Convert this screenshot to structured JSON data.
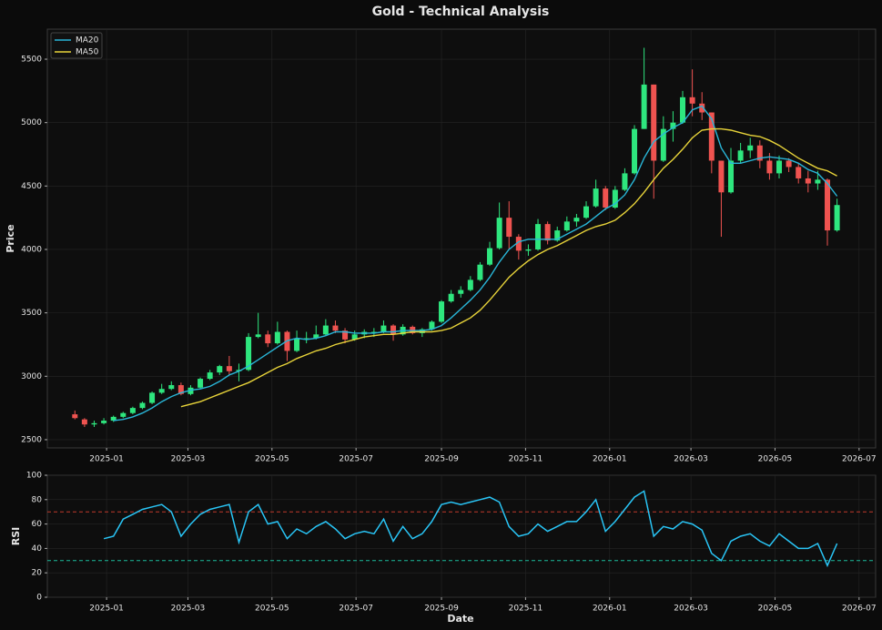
{
  "chart_data": [
    {
      "type": "candlestick",
      "title": "Gold - Technical Analysis",
      "y_label": "Price",
      "x": [
        "2024-12-09",
        "2024-12-16",
        "2024-12-23",
        "2024-12-30",
        "2025-01-06",
        "2025-01-13",
        "2025-01-20",
        "2025-01-27",
        "2025-02-03",
        "2025-02-10",
        "2025-02-17",
        "2025-02-24",
        "2025-03-03",
        "2025-03-10",
        "2025-03-17",
        "2025-03-24",
        "2025-03-31",
        "2025-04-07",
        "2025-04-14",
        "2025-04-21",
        "2025-04-28",
        "2025-05-05",
        "2025-05-12",
        "2025-05-19",
        "2025-05-26",
        "2025-06-02",
        "2025-06-09",
        "2025-06-16",
        "2025-06-23",
        "2025-06-30",
        "2025-07-07",
        "2025-07-14",
        "2025-07-21",
        "2025-07-28",
        "2025-08-04",
        "2025-08-11",
        "2025-08-18",
        "2025-08-25",
        "2025-09-01",
        "2025-09-08",
        "2025-09-15",
        "2025-09-22",
        "2025-09-29",
        "2025-10-06",
        "2025-10-13",
        "2025-10-20",
        "2025-10-27",
        "2025-11-03",
        "2025-11-10",
        "2025-11-17",
        "2025-11-24",
        "2025-12-01",
        "2025-12-08",
        "2025-12-15",
        "2025-12-22",
        "2025-12-29",
        "2026-01-05",
        "2026-01-12",
        "2026-01-19",
        "2026-01-26",
        "2026-02-02",
        "2026-02-09",
        "2026-02-16",
        "2026-02-23",
        "2026-03-02",
        "2026-03-09",
        "2026-03-16",
        "2026-03-23",
        "2026-03-30",
        "2026-04-06",
        "2026-04-13",
        "2026-04-20",
        "2026-04-27",
        "2026-05-04",
        "2026-05-11",
        "2026-05-18",
        "2026-05-25",
        "2026-06-01",
        "2026-06-08",
        "2026-06-15"
      ],
      "open": [
        2700,
        2660,
        2620,
        2630,
        2650,
        2680,
        2710,
        2750,
        2790,
        2870,
        2900,
        2930,
        2860,
        2910,
        2980,
        3030,
        3080,
        3040,
        3050,
        3310,
        3330,
        3260,
        3350,
        3200,
        3300,
        3300,
        3330,
        3400,
        3360,
        3290,
        3330,
        3350,
        3350,
        3400,
        3330,
        3390,
        3340,
        3370,
        3430,
        3590,
        3650,
        3680,
        3760,
        3880,
        4010,
        4250,
        4100,
        3990,
        4000,
        4200,
        4070,
        4150,
        4220,
        4250,
        4340,
        4480,
        4330,
        4470,
        4600,
        4950,
        5300,
        4700,
        4950,
        5000,
        5200,
        5150,
        5080,
        4700,
        4450,
        4700,
        4780,
        4820,
        4700,
        4600,
        4700,
        4650,
        4560,
        4520,
        4550,
        4150
      ],
      "high": [
        2730,
        2670,
        2650,
        2670,
        2690,
        2720,
        2760,
        2800,
        2880,
        2940,
        2960,
        2950,
        2930,
        2990,
        3050,
        3090,
        3160,
        3100,
        3340,
        3500,
        3360,
        3430,
        3360,
        3360,
        3350,
        3400,
        3450,
        3440,
        3380,
        3360,
        3370,
        3380,
        3440,
        3410,
        3410,
        3400,
        3380,
        3440,
        3600,
        3680,
        3710,
        3790,
        3900,
        4060,
        4370,
        4380,
        4120,
        4040,
        4240,
        4220,
        4180,
        4260,
        4280,
        4380,
        4550,
        4500,
        4500,
        4640,
        4980,
        5590,
        5300,
        5050,
        5090,
        5250,
        5420,
        5240,
        5080,
        4700,
        4800,
        4840,
        4880,
        4860,
        4760,
        4740,
        4720,
        4680,
        4620,
        4620,
        4560,
        4400
      ],
      "low": [
        2660,
        2600,
        2600,
        2620,
        2640,
        2670,
        2700,
        2740,
        2780,
        2860,
        2890,
        2850,
        2850,
        2900,
        2970,
        3010,
        3010,
        2960,
        3040,
        3300,
        3230,
        3250,
        3120,
        3190,
        3260,
        3290,
        3320,
        3340,
        3260,
        3280,
        3300,
        3310,
        3340,
        3280,
        3320,
        3330,
        3310,
        3360,
        3420,
        3580,
        3620,
        3670,
        3750,
        3870,
        4000,
        4000,
        3920,
        3950,
        3990,
        4040,
        4060,
        4140,
        4180,
        4240,
        4330,
        4310,
        4320,
        4460,
        4590,
        4950,
        4400,
        4690,
        4850,
        4990,
        5050,
        5020,
        4600,
        4100,
        4440,
        4680,
        4720,
        4640,
        4550,
        4560,
        4610,
        4520,
        4450,
        4470,
        4030,
        4140
      ],
      "close": [
        2670,
        2620,
        2630,
        2650,
        2680,
        2710,
        2750,
        2790,
        2870,
        2900,
        2930,
        2860,
        2910,
        2980,
        3030,
        3080,
        3040,
        3050,
        3310,
        3330,
        3260,
        3350,
        3200,
        3300,
        3300,
        3330,
        3400,
        3360,
        3290,
        3330,
        3350,
        3350,
        3400,
        3330,
        3390,
        3340,
        3370,
        3430,
        3590,
        3650,
        3680,
        3760,
        3880,
        4010,
        4250,
        4100,
        3990,
        4000,
        4200,
        4070,
        4150,
        4220,
        4250,
        4340,
        4480,
        4330,
        4470,
        4600,
        4950,
        5300,
        4700,
        4950,
        5000,
        5200,
        5150,
        5080,
        4700,
        4450,
        4700,
        4780,
        4820,
        4700,
        4600,
        4700,
        4650,
        4560,
        4520,
        4550,
        4150,
        4350
      ],
      "up_color": "#2ee67e",
      "down_color": "#ef5350",
      "series": [
        {
          "name": "MA20",
          "color": "#29b6d8",
          "values": [
            null,
            null,
            null,
            null,
            2650,
            2660,
            2680,
            2710,
            2750,
            2800,
            2840,
            2870,
            2890,
            2900,
            2920,
            2960,
            3010,
            3040,
            3080,
            3130,
            3180,
            3230,
            3280,
            3300,
            3290,
            3300,
            3320,
            3350,
            3350,
            3340,
            3340,
            3340,
            3350,
            3350,
            3360,
            3360,
            3360,
            3370,
            3400,
            3460,
            3530,
            3600,
            3680,
            3780,
            3900,
            4000,
            4060,
            4080,
            4080,
            4080,
            4080,
            4120,
            4160,
            4200,
            4260,
            4320,
            4360,
            4430,
            4550,
            4720,
            4850,
            4910,
            4960,
            5000,
            5100,
            5130,
            5030,
            4800,
            4680,
            4680,
            4700,
            4720,
            4730,
            4720,
            4710,
            4680,
            4630,
            4600,
            4520,
            4420
          ]
        },
        {
          "name": "MA50",
          "color": "#e8d43a",
          "values": [
            null,
            null,
            null,
            null,
            null,
            null,
            null,
            null,
            null,
            null,
            null,
            2760,
            2780,
            2800,
            2830,
            2860,
            2890,
            2920,
            2950,
            2990,
            3030,
            3070,
            3100,
            3140,
            3170,
            3200,
            3220,
            3250,
            3270,
            3290,
            3310,
            3320,
            3330,
            3330,
            3340,
            3350,
            3350,
            3350,
            3360,
            3380,
            3420,
            3460,
            3520,
            3600,
            3690,
            3780,
            3850,
            3910,
            3960,
            4000,
            4030,
            4070,
            4110,
            4150,
            4180,
            4200,
            4230,
            4290,
            4360,
            4450,
            4550,
            4640,
            4710,
            4790,
            4880,
            4940,
            4950,
            4950,
            4940,
            4920,
            4900,
            4890,
            4860,
            4820,
            4770,
            4720,
            4680,
            4640,
            4620,
            4580
          ]
        }
      ],
      "ylim": [
        2435,
        5737
      ],
      "yticks": [
        2500,
        3000,
        3500,
        4000,
        4500,
        5000,
        5500
      ],
      "xlim": [
        "2024-11-19",
        "2026-07-13"
      ],
      "xticks": [
        {
          "value": "2025-01-01",
          "label": "2025-01"
        },
        {
          "value": "2025-03-01",
          "label": "2025-03"
        },
        {
          "value": "2025-05-01",
          "label": "2025-05"
        },
        {
          "value": "2025-07-01",
          "label": "2025-07"
        },
        {
          "value": "2025-09-01",
          "label": "2025-09"
        },
        {
          "value": "2025-11-01",
          "label": "2025-11"
        },
        {
          "value": "2026-01-01",
          "label": "2026-01"
        },
        {
          "value": "2026-03-01",
          "label": "2026-03"
        },
        {
          "value": "2026-05-01",
          "label": "2026-05"
        },
        {
          "value": "2026-07-01",
          "label": "2026-07"
        }
      ],
      "grid": true,
      "legend": "upper left"
    },
    {
      "type": "line",
      "y_label": "RSI",
      "x_label": "Date",
      "color": "#29c5f6",
      "x": [
        "2024-12-09",
        "2024-12-16",
        "2024-12-23",
        "2024-12-30",
        "2025-01-06",
        "2025-01-13",
        "2025-01-20",
        "2025-01-27",
        "2025-02-03",
        "2025-02-10",
        "2025-02-17",
        "2025-02-24",
        "2025-03-03",
        "2025-03-10",
        "2025-03-17",
        "2025-03-24",
        "2025-03-31",
        "2025-04-07",
        "2025-04-14",
        "2025-04-21",
        "2025-04-28",
        "2025-05-05",
        "2025-05-12",
        "2025-05-19",
        "2025-05-26",
        "2025-06-02",
        "2025-06-09",
        "2025-06-16",
        "2025-06-23",
        "2025-06-30",
        "2025-07-07",
        "2025-07-14",
        "2025-07-21",
        "2025-07-28",
        "2025-08-04",
        "2025-08-11",
        "2025-08-18",
        "2025-08-25",
        "2025-09-01",
        "2025-09-08",
        "2025-09-15",
        "2025-09-22",
        "2025-09-29",
        "2025-10-06",
        "2025-10-13",
        "2025-10-20",
        "2025-10-27",
        "2025-11-03",
        "2025-11-10",
        "2025-11-17",
        "2025-11-24",
        "2025-12-01",
        "2025-12-08",
        "2025-12-15",
        "2025-12-22",
        "2025-12-29",
        "2026-01-05",
        "2026-01-12",
        "2026-01-19",
        "2026-01-26",
        "2026-02-02",
        "2026-02-09",
        "2026-02-16",
        "2026-02-23",
        "2026-03-02",
        "2026-03-09",
        "2026-03-16",
        "2026-03-23",
        "2026-03-30",
        "2026-04-06",
        "2026-04-13",
        "2026-04-20",
        "2026-04-27",
        "2026-05-04",
        "2026-05-11",
        "2026-05-18",
        "2026-05-25",
        "2026-06-01",
        "2026-06-08",
        "2026-06-15"
      ],
      "values": [
        null,
        null,
        null,
        48,
        50,
        64,
        68,
        72,
        74,
        76,
        70,
        50,
        60,
        68,
        72,
        74,
        76,
        45,
        70,
        76,
        60,
        62,
        48,
        56,
        52,
        58,
        62,
        56,
        48,
        52,
        54,
        52,
        64,
        46,
        58,
        48,
        52,
        62,
        76,
        78,
        76,
        78,
        80,
        82,
        78,
        58,
        50,
        52,
        60,
        54,
        58,
        62,
        62,
        70,
        80,
        54,
        62,
        72,
        82,
        87,
        50,
        58,
        56,
        62,
        60,
        55,
        36,
        30,
        46,
        50,
        52,
        46,
        42,
        52,
        46,
        40,
        40,
        44,
        26,
        44
      ],
      "reference_lines": [
        {
          "value": 70,
          "color": "#c0392b"
        },
        {
          "value": 30,
          "color": "#1abc9c"
        }
      ],
      "ylim": [
        0,
        100
      ],
      "yticks": [
        0,
        20,
        40,
        60,
        80,
        100
      ],
      "xlim": [
        "2024-11-19",
        "2026-07-13"
      ],
      "xticks": [
        {
          "value": "2025-01-01",
          "label": "2025-01"
        },
        {
          "value": "2025-03-01",
          "label": "2025-03"
        },
        {
          "value": "2025-05-01",
          "label": "2025-05"
        },
        {
          "value": "2025-07-01",
          "label": "2025-07"
        },
        {
          "value": "2025-09-01",
          "label": "2025-09"
        },
        {
          "value": "2025-11-01",
          "label": "2025-11"
        },
        {
          "value": "2026-01-01",
          "label": "2026-01"
        },
        {
          "value": "2026-03-01",
          "label": "2026-03"
        },
        {
          "value": "2026-05-01",
          "label": "2026-05"
        },
        {
          "value": "2026-07-01",
          "label": "2026-07"
        }
      ],
      "grid": true
    }
  ]
}
